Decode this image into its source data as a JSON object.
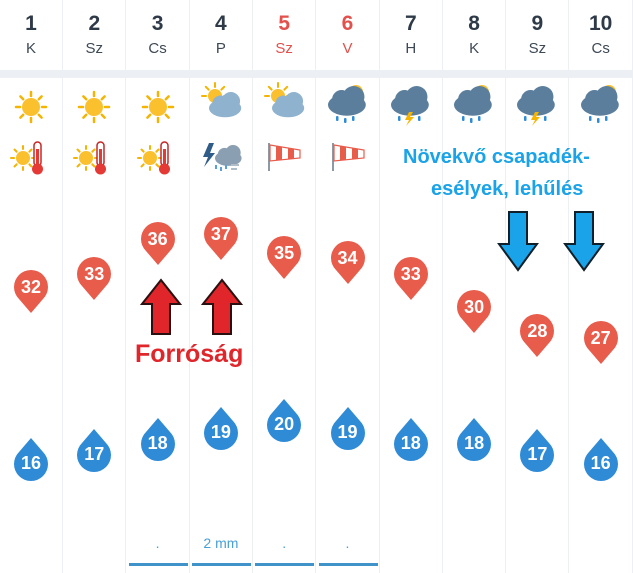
{
  "colors": {
    "temp_bubble": "#e85c4c",
    "drop": "#2f8bd6",
    "hot_label": "#e0262b",
    "cool_label": "#1aa3e8"
  },
  "days": [
    {
      "num": "1",
      "name": "K",
      "weekend": false,
      "weather_icon": "sun-icon",
      "extra_icon": "thermometer-icon",
      "high": "32",
      "low": "16",
      "precip": ""
    },
    {
      "num": "2",
      "name": "Sz",
      "weekend": false,
      "weather_icon": "sun-icon",
      "extra_icon": "thermometer-icon",
      "high": "33",
      "low": "17",
      "precip": ""
    },
    {
      "num": "3",
      "name": "Cs",
      "weekend": false,
      "weather_icon": "sun-icon",
      "extra_icon": "thermometer-icon",
      "high": "36",
      "low": "18",
      "precip": "."
    },
    {
      "num": "4",
      "name": "P",
      "weekend": false,
      "weather_icon": "sun-cloud-icon",
      "extra_icon": "thunder-rain-icon",
      "high": "37",
      "low": "19",
      "precip": "2 mm"
    },
    {
      "num": "5",
      "name": "Sz",
      "weekend": true,
      "weather_icon": "sun-cloud-icon",
      "extra_icon": "windsock-icon",
      "high": "35",
      "low": "20",
      "precip": "."
    },
    {
      "num": "6",
      "name": "V",
      "weekend": true,
      "weather_icon": "sun-cloud-rain-icon",
      "extra_icon": "windsock-icon",
      "high": "34",
      "low": "19",
      "precip": "."
    },
    {
      "num": "7",
      "name": "H",
      "weekend": false,
      "weather_icon": "cloud-storm-icon",
      "extra_icon": "",
      "high": "33",
      "low": "18",
      "precip": ""
    },
    {
      "num": "8",
      "name": "K",
      "weekend": false,
      "weather_icon": "sun-cloud-rain-icon",
      "extra_icon": "",
      "high": "30",
      "low": "18",
      "precip": ""
    },
    {
      "num": "9",
      "name": "Sz",
      "weekend": false,
      "weather_icon": "cloud-storm-icon",
      "extra_icon": "",
      "high": "28",
      "low": "17",
      "precip": ""
    },
    {
      "num": "10",
      "name": "Cs",
      "weekend": false,
      "weather_icon": "sun-cloud-rain-icon",
      "extra_icon": "",
      "high": "27",
      "low": "16",
      "precip": ""
    }
  ],
  "annotations": {
    "hot": "Forróság",
    "cool_line1": "Növekvő csapadék-",
    "cool_line2": "esélyek, lehűlés"
  }
}
